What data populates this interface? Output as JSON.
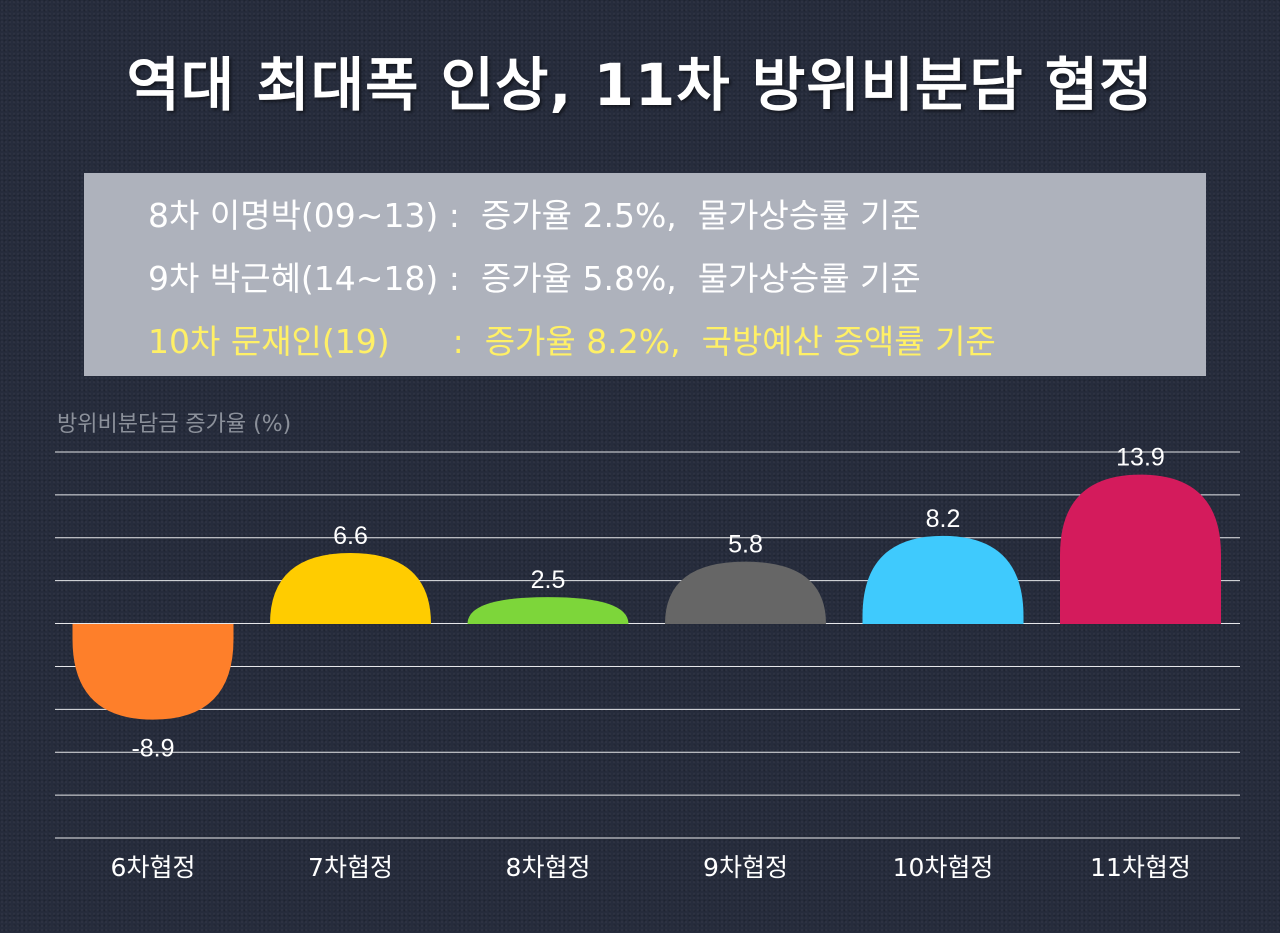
{
  "header": {
    "title": "역대 최대폭 인상, 11차 방위비분담 협정"
  },
  "info_box": {
    "lines": [
      "8차 이명박(09~13) :  증가율 2.5%,  물가상승률 기준",
      "9차 박근혜(14~18) :  증가율 5.8%,  물가상승률 기준",
      "10차 문재인(19)      :  증가율 8.2%,  국방예산 증액률 기준"
    ],
    "highlight_color": "#fff066"
  },
  "chart_data": {
    "type": "bar",
    "title": "",
    "ylabel": "방위비분담금 증가율 (%)",
    "xlabel": "",
    "categories": [
      "6차협정",
      "7차협정",
      "8차협정",
      "9차협정",
      "10차협정",
      "11차협정"
    ],
    "values": [
      -8.9,
      6.6,
      2.5,
      5.8,
      8.2,
      13.9
    ],
    "value_labels": [
      "-8.9",
      "6.6",
      "2.5",
      "5.8",
      "8.2",
      "13.9"
    ],
    "colors": [
      "#fe7f2a",
      "#ffcc00",
      "#7dd63a",
      "#666666",
      "#3fcafd",
      "#d41b5c"
    ],
    "ylim": [
      -20,
      20
    ],
    "grid": true,
    "legend": "none"
  }
}
